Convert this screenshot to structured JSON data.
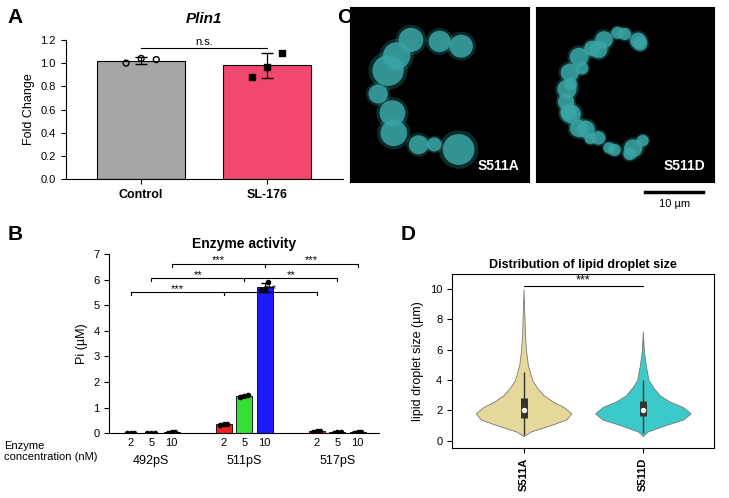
{
  "chart_data": [
    {
      "panel": "A",
      "type": "bar",
      "title": "Plin1",
      "y_label": "Fold Change",
      "categories": [
        "Control",
        "SL-176"
      ],
      "values": [
        1.02,
        0.98
      ],
      "errors": [
        0.03,
        0.11
      ],
      "colors": [
        "#a6a6a6",
        "#f2476e"
      ],
      "points": [
        {
          "values": [
            1.0,
            1.04,
            1.03
          ],
          "marker": "open circle"
        },
        {
          "values": [
            0.88,
            0.97,
            1.09
          ],
          "marker": "square"
        }
      ],
      "significance": [
        {
          "pair": [
            0,
            1
          ],
          "y": 1.13,
          "label": "n.s."
        }
      ],
      "ylim": [
        0,
        1.2
      ],
      "yticks": [
        {
          "value": 0,
          "label": "0.0"
        },
        {
          "value": 0.2,
          "label": "0.2"
        },
        {
          "value": 0.4,
          "label": "0.4"
        },
        {
          "value": 0.6,
          "label": "0.6"
        },
        {
          "value": 0.8,
          "label": "0.8"
        },
        {
          "value": 1.0,
          "label": "1.0"
        },
        {
          "value": 1.2,
          "label": "1.2"
        }
      ]
    },
    {
      "panel": "B",
      "type": "bar",
      "title": "Enzyme activity",
      "y_label": "Pi (µM)",
      "x_label": "Enzyme\nconcentration (nM)",
      "categories": [
        "492pS",
        "511pS",
        "517pS"
      ],
      "series": [
        {
          "name": "2",
          "color": "#ee2020",
          "values": [
            0,
            0.35,
            0.08
          ],
          "errors": [
            0,
            0.02,
            0.02
          ],
          "points": [
            [
              0,
              0,
              0
            ],
            [
              0.33,
              0.36,
              0.37
            ],
            [
              0.06,
              0.08,
              0.1
            ]
          ]
        },
        {
          "name": "5",
          "color": "#33e033",
          "values": [
            0,
            1.45,
            0.03
          ],
          "errors": [
            0,
            0.03,
            0.01
          ],
          "points": [
            [
              0,
              0,
              0
            ],
            [
              1.42,
              1.45,
              1.48
            ],
            [
              0.02,
              0.03,
              0.04
            ]
          ]
        },
        {
          "name": "10",
          "color": "#1a1aff",
          "values": [
            0.03,
            5.7,
            0.03
          ],
          "errors": [
            0.01,
            0.17,
            0.01
          ],
          "points": [
            [
              0.02,
              0.03,
              0.04
            ],
            [
              5.6,
              5.6,
              5.9
            ],
            [
              0.02,
              0.03,
              0.04
            ]
          ]
        }
      ],
      "significance": [
        {
          "from": [
            0,
            2
          ],
          "to": [
            1,
            2
          ],
          "y": 6.6,
          "label": "***"
        },
        {
          "from": [
            1,
            2
          ],
          "to": [
            2,
            2
          ],
          "y": 6.6,
          "label": "***"
        },
        {
          "from": [
            0,
            1
          ],
          "to": [
            1,
            1
          ],
          "y": 6.05,
          "label": "**"
        },
        {
          "from": [
            1,
            1
          ],
          "to": [
            2,
            1
          ],
          "y": 6.05,
          "label": "**"
        },
        {
          "from": [
            0,
            0
          ],
          "to": [
            1,
            0
          ],
          "y": 5.5,
          "label": "***"
        },
        {
          "from": [
            1,
            0
          ],
          "to": [
            2,
            0
          ],
          "y": 5.5,
          "label": "***"
        }
      ],
      "ylim": [
        0,
        7
      ],
      "yticks": [
        0,
        1,
        2,
        3,
        4,
        5,
        6,
        7
      ]
    },
    {
      "panel": "C",
      "type": "image",
      "images": [
        "S511A",
        "S511D"
      ],
      "color": "#3aa6a6",
      "scale_bar": "10 µm"
    },
    {
      "panel": "D",
      "type": "violin",
      "title": "Distribution of lipid droplet size",
      "y_label": "lipid droplet size (µm)",
      "categories": [
        "S511A",
        "S511D"
      ],
      "violins": [
        {
          "color": "#e6d89a",
          "density": {
            "y": [
              0.3,
              0.6,
              1.0,
              1.4,
              1.8,
              2.2,
              2.6,
              3.0,
              3.5,
              4.0,
              5.0,
              6.0,
              7.0,
              8.0,
              9.0,
              10.0
            ],
            "width": [
              0,
              0.15,
              0.55,
              0.9,
              1.0,
              0.85,
              0.6,
              0.42,
              0.28,
              0.18,
              0.09,
              0.05,
              0.03,
              0.02,
              0.01,
              0
            ]
          },
          "quartiles": [
            1.5,
            2.0,
            2.8
          ],
          "whiskers": [
            0.4,
            4.5
          ]
        },
        {
          "color": "#3cc9c9",
          "density": {
            "y": [
              0.3,
              0.6,
              1.0,
              1.4,
              1.8,
              2.2,
              2.6,
              3.0,
              3.5,
              4.0,
              5.0,
              6.0,
              7.2
            ],
            "width": [
              0,
              0.1,
              0.45,
              0.85,
              1.0,
              0.85,
              0.55,
              0.35,
              0.22,
              0.12,
              0.06,
              0.02,
              0
            ]
          },
          "quartiles": [
            1.6,
            2.0,
            2.6
          ],
          "whiskers": [
            0.5,
            4.0
          ]
        }
      ],
      "significance": [
        {
          "pair": [
            0,
            1
          ],
          "y": 10.2,
          "label": "***"
        }
      ],
      "ylim": [
        -0.5,
        11
      ],
      "yticks": [
        0,
        2,
        4,
        6,
        8,
        10
      ]
    }
  ]
}
